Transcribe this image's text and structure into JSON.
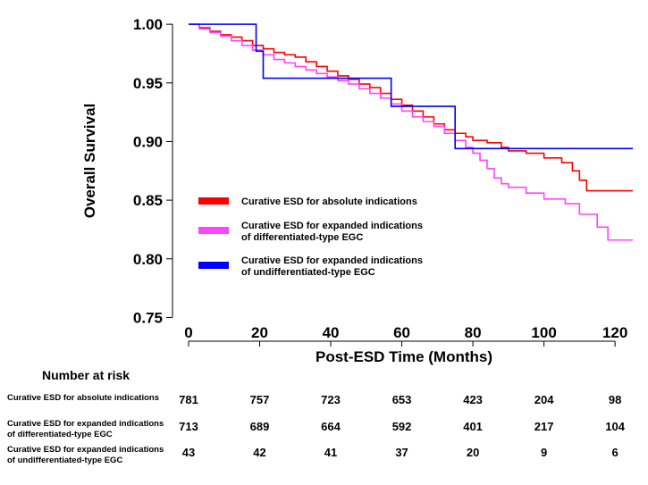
{
  "chart_data": {
    "type": "line",
    "title": "",
    "xlabel": "Post-ESD Time (Months)",
    "ylabel": "Overall Survival",
    "xlim": [
      0,
      125
    ],
    "ylim": [
      0.745,
      1.01
    ],
    "x_ticks": [
      "0",
      "20",
      "40",
      "60",
      "80",
      "100",
      "120"
    ],
    "y_ticks": [
      "0.75",
      "0.80",
      "0.85",
      "0.90",
      "0.95",
      "1.00"
    ],
    "legend_position": "center-left",
    "series": [
      {
        "name": "Curative ESD for absolute indications",
        "color": "#ff0000",
        "step": true,
        "x": [
          0,
          3,
          6,
          9,
          12,
          15,
          18,
          21,
          24,
          27,
          30,
          33,
          36,
          39,
          42,
          45,
          48,
          51,
          54,
          57,
          60,
          63,
          66,
          69,
          72,
          75,
          78,
          80,
          84,
          88,
          90,
          95,
          100,
          105,
          108,
          110,
          112,
          125
        ],
        "y": [
          1.0,
          0.997,
          0.994,
          0.991,
          0.989,
          0.986,
          0.982,
          0.979,
          0.976,
          0.974,
          0.972,
          0.968,
          0.964,
          0.96,
          0.956,
          0.953,
          0.949,
          0.946,
          0.941,
          0.936,
          0.931,
          0.926,
          0.921,
          0.915,
          0.91,
          0.907,
          0.904,
          0.901,
          0.899,
          0.895,
          0.892,
          0.89,
          0.886,
          0.882,
          0.875,
          0.867,
          0.858,
          0.858
        ]
      },
      {
        "name": "Curative ESD for expanded indications of differentiated-type EGC",
        "color": "#ff44ff",
        "step": true,
        "x": [
          0,
          3,
          6,
          9,
          12,
          15,
          18,
          21,
          24,
          27,
          30,
          33,
          36,
          39,
          42,
          45,
          48,
          51,
          54,
          57,
          60,
          63,
          66,
          69,
          72,
          75,
          78,
          80,
          82,
          84,
          86,
          88,
          90,
          95,
          100,
          106,
          110,
          115,
          118,
          125
        ],
        "y": [
          1.0,
          0.996,
          0.993,
          0.99,
          0.986,
          0.982,
          0.978,
          0.974,
          0.97,
          0.967,
          0.964,
          0.961,
          0.958,
          0.955,
          0.952,
          0.949,
          0.945,
          0.941,
          0.937,
          0.932,
          0.926,
          0.921,
          0.917,
          0.913,
          0.907,
          0.901,
          0.895,
          0.89,
          0.884,
          0.877,
          0.869,
          0.864,
          0.861,
          0.856,
          0.851,
          0.847,
          0.838,
          0.827,
          0.816,
          0.816
        ]
      },
      {
        "name": "Curative ESD for expanded indications of undifferentiated-type EGC",
        "color": "#0000ff",
        "step": true,
        "x": [
          0,
          19,
          21,
          57,
          75,
          125
        ],
        "y": [
          1.0,
          0.977,
          0.954,
          0.93,
          0.894,
          0.894
        ]
      }
    ]
  },
  "risk_table": {
    "title": "Number at risk",
    "times": [
      0,
      20,
      40,
      60,
      80,
      100,
      120
    ],
    "rows": [
      {
        "label_lines": [
          "Curative ESD for absolute indications"
        ],
        "values": [
          "781",
          "757",
          "723",
          "653",
          "423",
          "204",
          "98"
        ]
      },
      {
        "label_lines": [
          "Curative ESD for expanded indications",
          "of differentiated-type EGC"
        ],
        "values": [
          "713",
          "689",
          "664",
          "592",
          "401",
          "217",
          "104"
        ]
      },
      {
        "label_lines": [
          "Curative ESD for expanded indications",
          "of undifferentiated-type EGC"
        ],
        "values": [
          "43",
          "42",
          "41",
          "37",
          "20",
          "9",
          "6"
        ]
      }
    ]
  }
}
